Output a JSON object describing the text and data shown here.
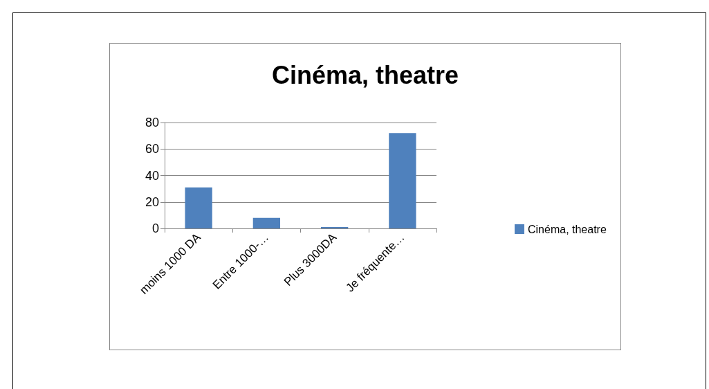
{
  "chart_data": {
    "type": "bar",
    "title": "Cinéma, theatre",
    "categories": [
      "moins 1000 DA",
      "Entre 1000-…",
      "Plus 3000DA",
      "Je fréquente…"
    ],
    "series": [
      {
        "name": "Cinéma, theatre",
        "color": "#4f81bd",
        "values": [
          31,
          8,
          1,
          72
        ]
      }
    ],
    "ylim": [
      0,
      80
    ],
    "yticks": [
      0,
      20,
      40,
      60,
      80
    ],
    "grid": "y",
    "legend": "right"
  }
}
